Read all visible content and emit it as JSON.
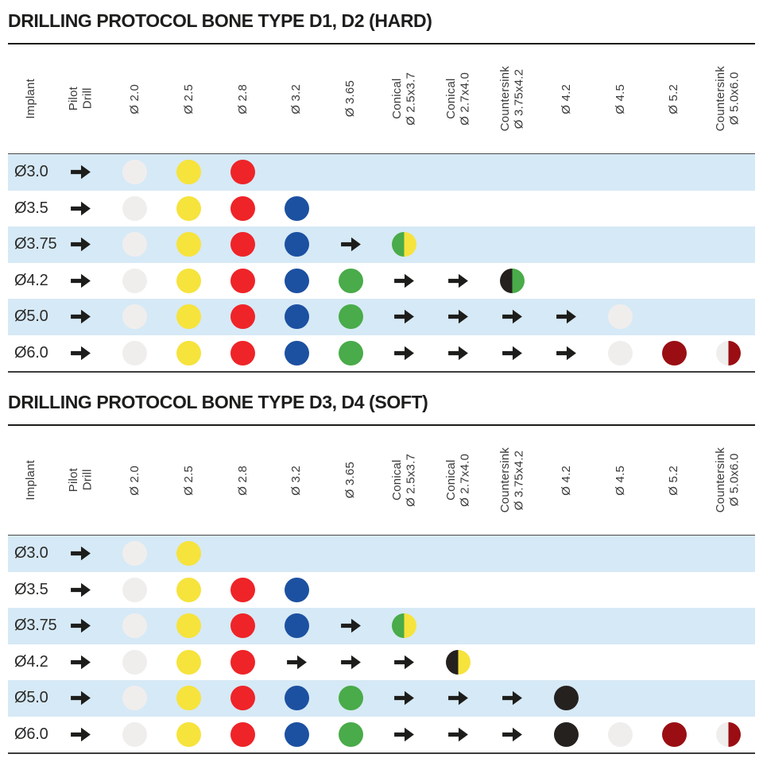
{
  "colors": {
    "row_alt": "#d6e9f6",
    "arrow": "#1d1d1b",
    "white_dot": "#f0eeed",
    "yellow": "#f6e33c",
    "red": "#ee2428",
    "blue": "#1c51a1",
    "green": "#49ab49",
    "black": "#25211f",
    "maroon": "#9a0e13"
  },
  "tables": [
    {
      "title": "DRILLING PROTOCOL BONE TYPE D1, D2 (HARD)",
      "columns": [
        [
          "Implant"
        ],
        [
          "Pilot",
          "Drill"
        ],
        [
          "Ø 2.0"
        ],
        [
          "Ø 2.5"
        ],
        [
          "Ø 2.8"
        ],
        [
          "Ø 3.2"
        ],
        [
          "Ø 3.65"
        ],
        [
          "Conical",
          "Ø 2.5x3.7"
        ],
        [
          "Conical",
          "Ø 2.7x4.0"
        ],
        [
          "Countersink",
          "Ø 3.75x4.2"
        ],
        [
          "Ø 4.2"
        ],
        [
          "Ø 4.5"
        ],
        [
          "Ø 5.2"
        ],
        [
          "Countersink",
          "Ø 5.0x6.0"
        ]
      ],
      "rows": [
        {
          "implant": "Ø3.0",
          "cells": [
            "arrow",
            "w",
            "y",
            "r",
            "",
            "",
            "",
            "",
            "",
            "",
            "",
            "",
            ""
          ]
        },
        {
          "implant": "Ø3.5",
          "cells": [
            "arrow",
            "w",
            "y",
            "r",
            "b",
            "",
            "",
            "",
            "",
            "",
            "",
            "",
            ""
          ]
        },
        {
          "implant": "Ø3.75",
          "cells": [
            "arrow",
            "w",
            "y",
            "r",
            "b",
            "arrow",
            "g|y",
            "",
            "",
            "",
            "",
            "",
            ""
          ]
        },
        {
          "implant": "Ø4.2",
          "cells": [
            "arrow",
            "w",
            "y",
            "r",
            "b",
            "g",
            "arrow",
            "arrow",
            "k|g",
            "",
            "",
            "",
            ""
          ]
        },
        {
          "implant": "Ø5.0",
          "cells": [
            "arrow",
            "w",
            "y",
            "r",
            "b",
            "g",
            "arrow",
            "arrow",
            "arrow",
            "arrow",
            "w",
            "",
            ""
          ]
        },
        {
          "implant": "Ø6.0",
          "cells": [
            "arrow",
            "w",
            "y",
            "r",
            "b",
            "g",
            "arrow",
            "arrow",
            "arrow",
            "arrow",
            "w",
            "m",
            "w|m"
          ]
        }
      ]
    },
    {
      "title": "DRILLING PROTOCOL BONE TYPE D3, D4 (SOFT)",
      "columns": [
        [
          "Implant"
        ],
        [
          "Pilot",
          "Drill"
        ],
        [
          "Ø 2.0"
        ],
        [
          "Ø 2.5"
        ],
        [
          "Ø 2.8"
        ],
        [
          "Ø 3.2"
        ],
        [
          "Ø 3.65"
        ],
        [
          "Conical",
          "Ø 2.5x3.7"
        ],
        [
          "Conical",
          "Ø 2.7x4.0"
        ],
        [
          "Countersink",
          "Ø 3.75x4.2"
        ],
        [
          "Ø 4.2"
        ],
        [
          "Ø 4.5"
        ],
        [
          "Ø 5.2"
        ],
        [
          "Countersink",
          "Ø 5.0x6.0"
        ]
      ],
      "rows": [
        {
          "implant": "Ø3.0",
          "cells": [
            "arrow",
            "w",
            "y",
            "",
            "",
            "",
            "",
            "",
            "",
            "",
            "",
            "",
            ""
          ]
        },
        {
          "implant": "Ø3.5",
          "cells": [
            "arrow",
            "w",
            "y",
            "r",
            "b",
            "",
            "",
            "",
            "",
            "",
            "",
            "",
            ""
          ]
        },
        {
          "implant": "Ø3.75",
          "cells": [
            "arrow",
            "w",
            "y",
            "r",
            "b",
            "arrow",
            "g|y",
            "",
            "",
            "",
            "",
            "",
            ""
          ]
        },
        {
          "implant": "Ø4.2",
          "cells": [
            "arrow",
            "w",
            "y",
            "r",
            "arrow",
            "arrow",
            "arrow",
            "k|y",
            "",
            "",
            "",
            "",
            ""
          ]
        },
        {
          "implant": "Ø5.0",
          "cells": [
            "arrow",
            "w",
            "y",
            "r",
            "b",
            "g",
            "arrow",
            "arrow",
            "arrow",
            "k",
            "",
            "",
            ""
          ]
        },
        {
          "implant": "Ø6.0",
          "cells": [
            "arrow",
            "w",
            "y",
            "r",
            "b",
            "g",
            "arrow",
            "arrow",
            "arrow",
            "k",
            "w",
            "m",
            "w|m"
          ]
        }
      ]
    }
  ]
}
